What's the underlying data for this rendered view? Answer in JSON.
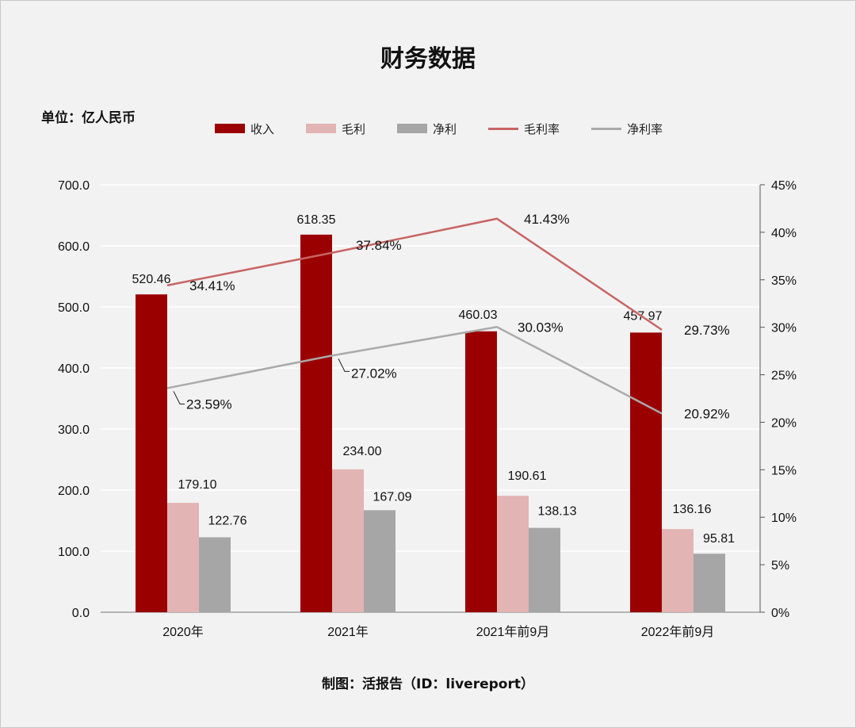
{
  "title": "财务数据",
  "unit_label": "单位：亿人民币",
  "credit": "制图：活报告（ID：livereport）",
  "legend": [
    {
      "label": "收入",
      "kind": "bar",
      "color": "#9b0000"
    },
    {
      "label": "毛利",
      "kind": "bar",
      "color": "#e2b4b4"
    },
    {
      "label": "净利",
      "kind": "bar",
      "color": "#a6a6a6"
    },
    {
      "label": "毛利率",
      "kind": "line",
      "color": "#c86464"
    },
    {
      "label": "净利率",
      "kind": "line",
      "color": "#aaaaaa"
    }
  ],
  "chart_data": {
    "type": "bar",
    "categories": [
      "2020年",
      "2021年",
      "2021年前9月",
      "2022年前9月"
    ],
    "series": [
      {
        "name": "收入",
        "type": "bar",
        "axis": "left",
        "color": "#9b0000",
        "values": [
          520.46,
          618.35,
          460.03,
          457.97
        ],
        "labels": [
          "520.46",
          "618.35",
          "460.03",
          "457.97"
        ]
      },
      {
        "name": "毛利",
        "type": "bar",
        "axis": "left",
        "color": "#e2b4b4",
        "values": [
          179.1,
          234.0,
          190.61,
          136.16
        ],
        "labels": [
          "179.10",
          "234.00",
          "190.61",
          "136.16"
        ]
      },
      {
        "name": "净利",
        "type": "bar",
        "axis": "left",
        "color": "#a6a6a6",
        "values": [
          122.76,
          167.09,
          138.13,
          95.81
        ],
        "labels": [
          "122.76",
          "167.09",
          "138.13",
          "95.81"
        ]
      },
      {
        "name": "毛利率",
        "type": "line",
        "axis": "right",
        "color": "#c86464",
        "values": [
          34.41,
          37.84,
          41.43,
          29.73
        ],
        "labels": [
          "34.41%",
          "37.84%",
          "41.43%",
          "29.73%"
        ]
      },
      {
        "name": "净利率",
        "type": "line",
        "axis": "right",
        "color": "#aaaaaa",
        "values": [
          23.59,
          27.02,
          30.03,
          20.92
        ],
        "labels": [
          "23.59%",
          "27.02%",
          "30.03%",
          "20.92%"
        ]
      }
    ],
    "y_left": {
      "min": 0,
      "max": 700,
      "ticks": [
        "0.0",
        "100.0",
        "200.0",
        "300.0",
        "400.0",
        "500.0",
        "600.0",
        "700.0"
      ]
    },
    "y_right": {
      "min": 0,
      "max": 45,
      "ticks": [
        "0%",
        "5%",
        "10%",
        "15%",
        "20%",
        "25%",
        "30%",
        "35%",
        "40%",
        "45%"
      ]
    },
    "grid": true,
    "legend_position": "top"
  }
}
